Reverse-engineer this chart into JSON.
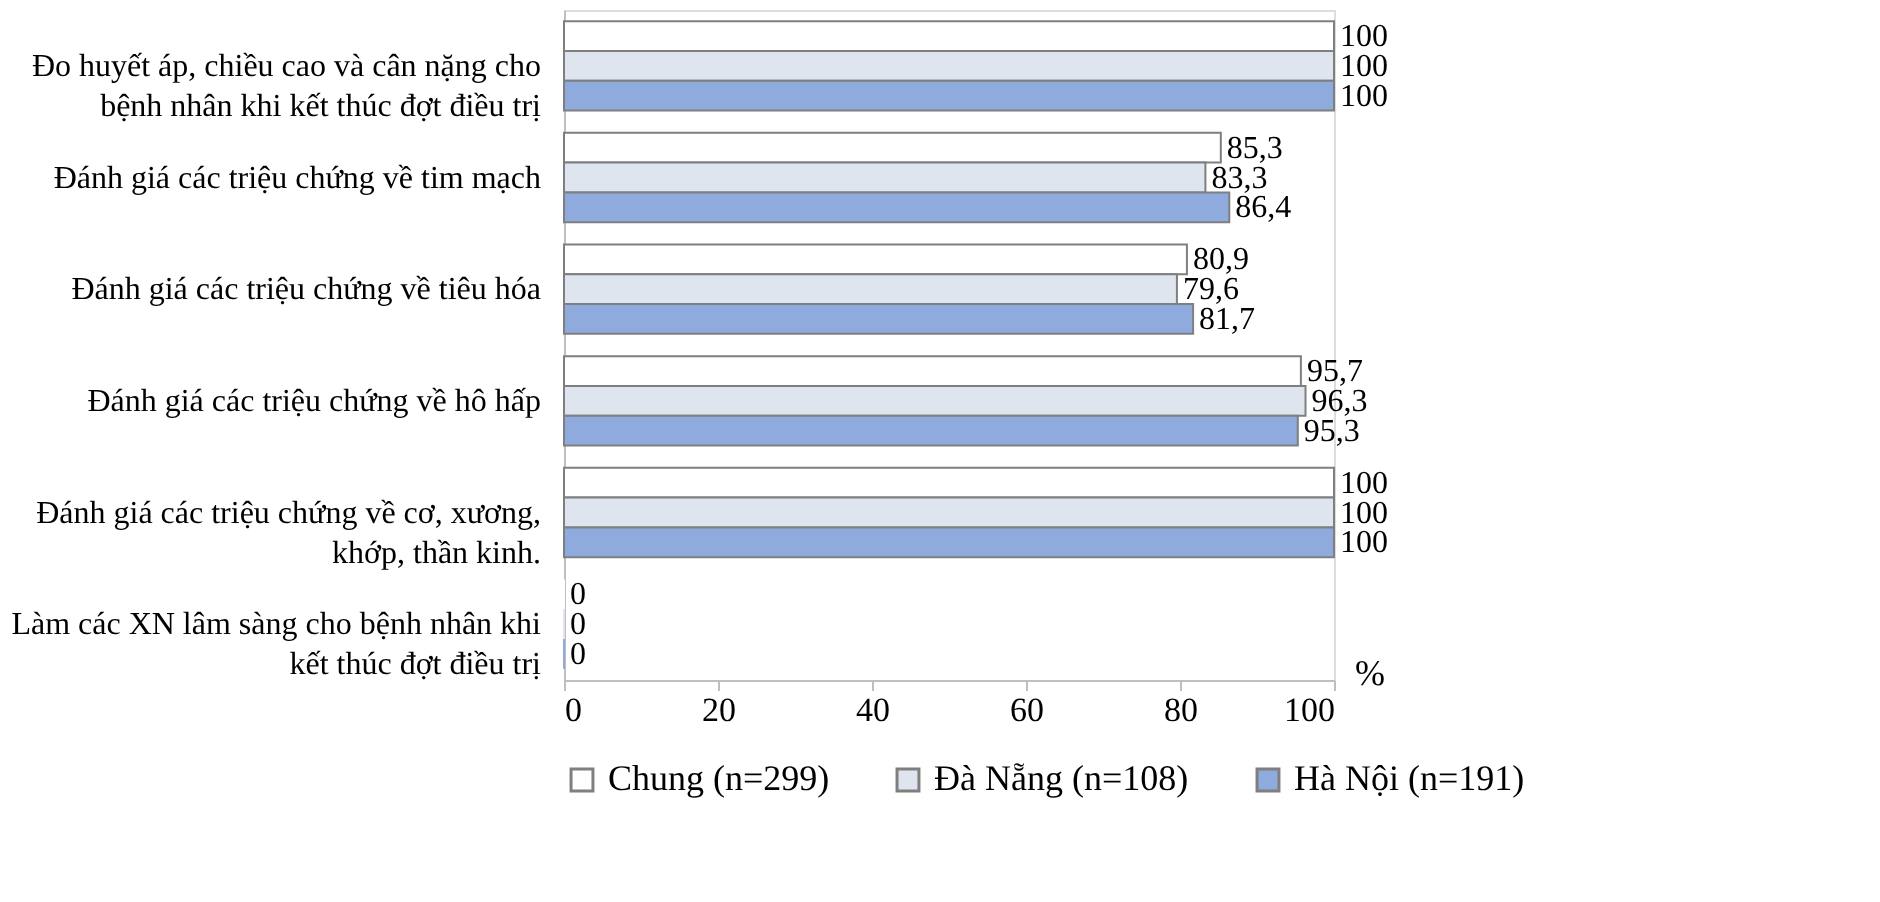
{
  "chart_data": {
    "type": "bar",
    "orientation": "horizontal",
    "categories": [
      "Đo huyết áp, chiều cao và cân nặng cho bệnh nhân khi kết thúc đợt điều trị",
      "Đánh giá các triệu chứng về tim mạch",
      "Đánh giá các triệu chứng về tiêu hóa",
      "Đánh giá các triệu chứng về hô hấp",
      "Đánh giá các triệu chứng về cơ, xương, khớp, thần kinh.",
      "Làm các XN lâm sàng cho bệnh nhân khi kết thúc đợt điều trị"
    ],
    "series": [
      {
        "name": "Chung (n=299)",
        "color": "#ffffff",
        "values": [
          100,
          85.3,
          80.9,
          95.7,
          100,
          0
        ],
        "value_labels": [
          "100",
          "85,3",
          "80,9",
          "95,7",
          "100",
          "0"
        ]
      },
      {
        "name": "Đà Nẵng (n=108)",
        "color": "#dfe5ef",
        "values": [
          100,
          83.3,
          79.6,
          96.3,
          100,
          0
        ],
        "value_labels": [
          "100",
          "83,3",
          "79,6",
          "96,3",
          "100",
          "0"
        ]
      },
      {
        "name": "Hà Nội (n=191)",
        "color": "#8faadc",
        "values": [
          100,
          86.4,
          81.7,
          95.3,
          100,
          0
        ],
        "value_labels": [
          "100",
          "86,4",
          "81,7",
          "95,3",
          "100",
          "0"
        ]
      }
    ],
    "xlabel": "%",
    "xlim": [
      0,
      100
    ],
    "xticks": [
      0,
      20,
      40,
      60,
      80,
      100
    ],
    "grid": false,
    "legend": "bottom"
  }
}
